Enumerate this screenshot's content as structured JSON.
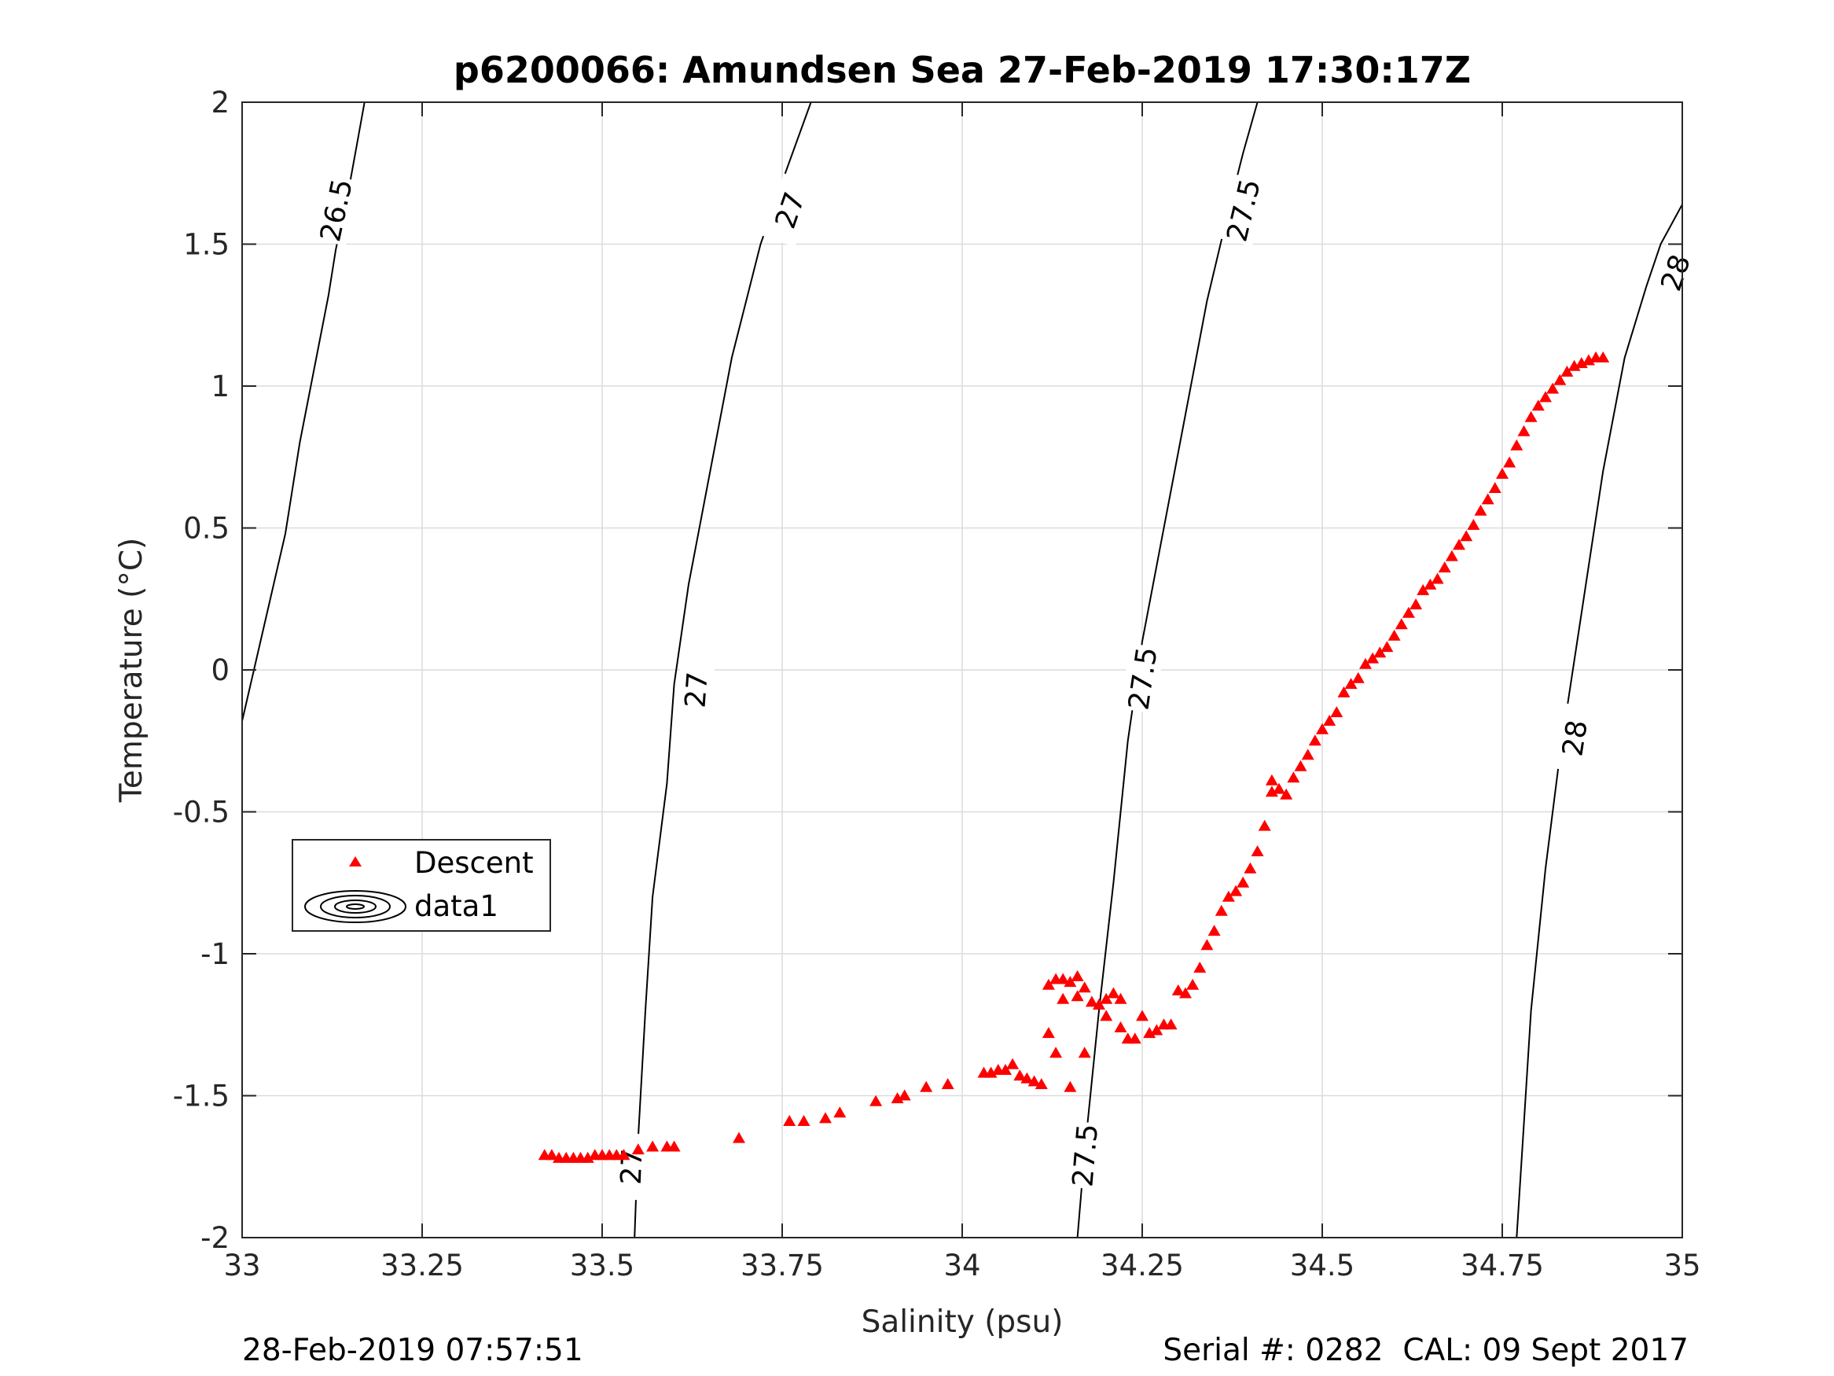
{
  "footer": {
    "timestamp": "28-Feb-2019 07:57:51",
    "serial": "Serial #: 0282  CAL: 09 Sept 2017"
  },
  "chart_data": {
    "type": "scatter",
    "title": "p6200066: Amundsen Sea 27-Feb-2019 17:30:17Z",
    "xlabel": "Salinity (psu)",
    "ylabel": "Temperature (°C)",
    "xlim": [
      33,
      35
    ],
    "ylim": [
      -2,
      2
    ],
    "xticks": [
      33,
      33.25,
      33.5,
      33.75,
      34,
      34.25,
      34.5,
      34.75,
      35
    ],
    "xtick_labels": [
      "33",
      "33.25",
      "33.5",
      "33.75",
      "34",
      "34.25",
      "34.5",
      "34.75",
      "35"
    ],
    "yticks": [
      -2,
      -1.5,
      -1,
      -0.5,
      0,
      0.5,
      1,
      1.5,
      2
    ],
    "ytick_labels": [
      "-2",
      "-1.5",
      "-1",
      "-0.5",
      "0",
      "0.5",
      "1",
      "1.5",
      "2"
    ],
    "grid": true,
    "legend": {
      "placement": "lower-left",
      "entries": [
        {
          "label": "Descent",
          "marker": "triangle",
          "color": "#ff0000"
        },
        {
          "label": "data1",
          "marker": "contour-ellipses",
          "color": "#000000"
        }
      ]
    },
    "series": [
      {
        "name": "Descent",
        "color": "#ff0000",
        "marker": "triangle",
        "x": [
          33.42,
          33.43,
          33.44,
          33.45,
          33.46,
          33.47,
          33.48,
          33.49,
          33.5,
          33.51,
          33.52,
          33.53,
          33.55,
          33.57,
          33.59,
          33.6,
          33.69,
          33.76,
          33.78,
          33.81,
          33.83,
          33.88,
          33.91,
          33.92,
          33.95,
          33.98,
          34.03,
          34.04,
          34.05,
          34.06,
          34.07,
          34.08,
          34.09,
          34.1,
          34.11,
          34.12,
          34.12,
          34.13,
          34.13,
          34.14,
          34.14,
          34.15,
          34.16,
          34.15,
          34.16,
          34.17,
          34.17,
          34.18,
          34.19,
          34.2,
          34.2,
          34.21,
          34.22,
          34.22,
          34.23,
          34.24,
          34.25,
          34.26,
          34.27,
          34.28,
          34.29,
          34.3,
          34.31,
          34.32,
          34.33,
          34.34,
          34.35,
          34.36,
          34.37,
          34.38,
          34.39,
          34.4,
          34.41,
          34.42,
          34.43,
          34.43,
          34.44,
          34.45,
          34.46,
          34.47,
          34.48,
          34.49,
          34.5,
          34.51,
          34.52,
          34.53,
          34.54,
          34.55,
          34.56,
          34.57,
          34.58,
          34.59,
          34.6,
          34.61,
          34.62,
          34.63,
          34.64,
          34.65,
          34.66,
          34.67,
          34.68,
          34.69,
          34.7,
          34.71,
          34.72,
          34.73,
          34.74,
          34.75,
          34.76,
          34.77,
          34.78,
          34.79,
          34.8,
          34.81,
          34.82,
          34.83,
          34.84,
          34.85,
          34.86,
          34.87,
          34.88,
          34.89
        ],
        "y": [
          -1.71,
          -1.71,
          -1.72,
          -1.72,
          -1.72,
          -1.72,
          -1.72,
          -1.71,
          -1.71,
          -1.71,
          -1.71,
          -1.71,
          -1.69,
          -1.68,
          -1.68,
          -1.68,
          -1.65,
          -1.59,
          -1.59,
          -1.58,
          -1.56,
          -1.52,
          -1.51,
          -1.5,
          -1.47,
          -1.46,
          -1.42,
          -1.42,
          -1.41,
          -1.41,
          -1.39,
          -1.43,
          -1.44,
          -1.45,
          -1.46,
          -1.28,
          -1.11,
          -1.35,
          -1.09,
          -1.16,
          -1.09,
          -1.1,
          -1.08,
          -1.47,
          -1.15,
          -1.35,
          -1.12,
          -1.17,
          -1.18,
          -1.16,
          -1.22,
          -1.14,
          -1.16,
          -1.26,
          -1.3,
          -1.3,
          -1.22,
          -1.28,
          -1.27,
          -1.25,
          -1.25,
          -1.13,
          -1.14,
          -1.11,
          -1.05,
          -0.97,
          -0.92,
          -0.85,
          -0.8,
          -0.78,
          -0.75,
          -0.7,
          -0.64,
          -0.55,
          -0.43,
          -0.39,
          -0.42,
          -0.44,
          -0.38,
          -0.34,
          -0.3,
          -0.25,
          -0.21,
          -0.18,
          -0.15,
          -0.08,
          -0.05,
          -0.03,
          0.02,
          0.04,
          0.06,
          0.08,
          0.12,
          0.16,
          0.2,
          0.23,
          0.28,
          0.3,
          0.32,
          0.36,
          0.4,
          0.44,
          0.47,
          0.51,
          0.56,
          0.6,
          0.64,
          0.69,
          0.73,
          0.79,
          0.84,
          0.89,
          0.93,
          0.96,
          0.99,
          1.02,
          1.05,
          1.07,
          1.08,
          1.09,
          1.1,
          1.1
        ]
      }
    ],
    "contours": [
      {
        "label": "26.5",
        "points": [
          [
            33.0,
            -0.18
          ],
          [
            33.03,
            0.15
          ],
          [
            33.06,
            0.48
          ],
          [
            33.08,
            0.8
          ],
          [
            33.1,
            1.06
          ],
          [
            33.12,
            1.32
          ],
          [
            33.13,
            1.48
          ],
          [
            33.14,
            1.6
          ],
          [
            33.15,
            1.72
          ],
          [
            33.16,
            1.86
          ],
          [
            33.17,
            2.0
          ]
        ],
        "label_positions": [
          [
            33.13,
            1.62
          ]
        ]
      },
      {
        "label": "27",
        "points": [
          [
            33.545,
            -2.0
          ],
          [
            33.55,
            -1.65
          ],
          [
            33.56,
            -1.2
          ],
          [
            33.57,
            -0.8
          ],
          [
            33.59,
            -0.4
          ],
          [
            33.6,
            -0.05
          ],
          [
            33.62,
            0.3
          ],
          [
            33.65,
            0.7
          ],
          [
            33.68,
            1.1
          ],
          [
            33.72,
            1.5
          ],
          [
            33.75,
            1.72
          ],
          [
            33.79,
            2.0
          ]
        ],
        "label_positions": [
          [
            33.54,
            -1.75
          ],
          [
            33.63,
            -0.07
          ],
          [
            33.76,
            1.62
          ]
        ]
      },
      {
        "label": "27.5",
        "points": [
          [
            34.16,
            -2.0
          ],
          [
            34.17,
            -1.7
          ],
          [
            34.19,
            -1.2
          ],
          [
            34.21,
            -0.75
          ],
          [
            34.23,
            -0.25
          ],
          [
            34.25,
            0.1
          ],
          [
            34.28,
            0.5
          ],
          [
            34.31,
            0.9
          ],
          [
            34.34,
            1.3
          ],
          [
            34.37,
            1.62
          ],
          [
            34.39,
            1.82
          ],
          [
            34.41,
            2.0
          ]
        ],
        "label_positions": [
          [
            34.17,
            -1.71
          ],
          [
            34.25,
            -0.03
          ],
          [
            34.39,
            1.62
          ]
        ]
      },
      {
        "label": "28",
        "points": [
          [
            34.77,
            -2.0
          ],
          [
            34.78,
            -1.6
          ],
          [
            34.79,
            -1.2
          ],
          [
            34.81,
            -0.7
          ],
          [
            34.83,
            -0.3
          ],
          [
            34.86,
            0.2
          ],
          [
            34.89,
            0.7
          ],
          [
            34.92,
            1.1
          ],
          [
            34.95,
            1.35
          ],
          [
            34.97,
            1.5
          ],
          [
            35.0,
            1.64
          ]
        ],
        "label_positions": [
          [
            34.85,
            -0.24
          ],
          [
            34.99,
            1.4
          ]
        ]
      }
    ]
  }
}
